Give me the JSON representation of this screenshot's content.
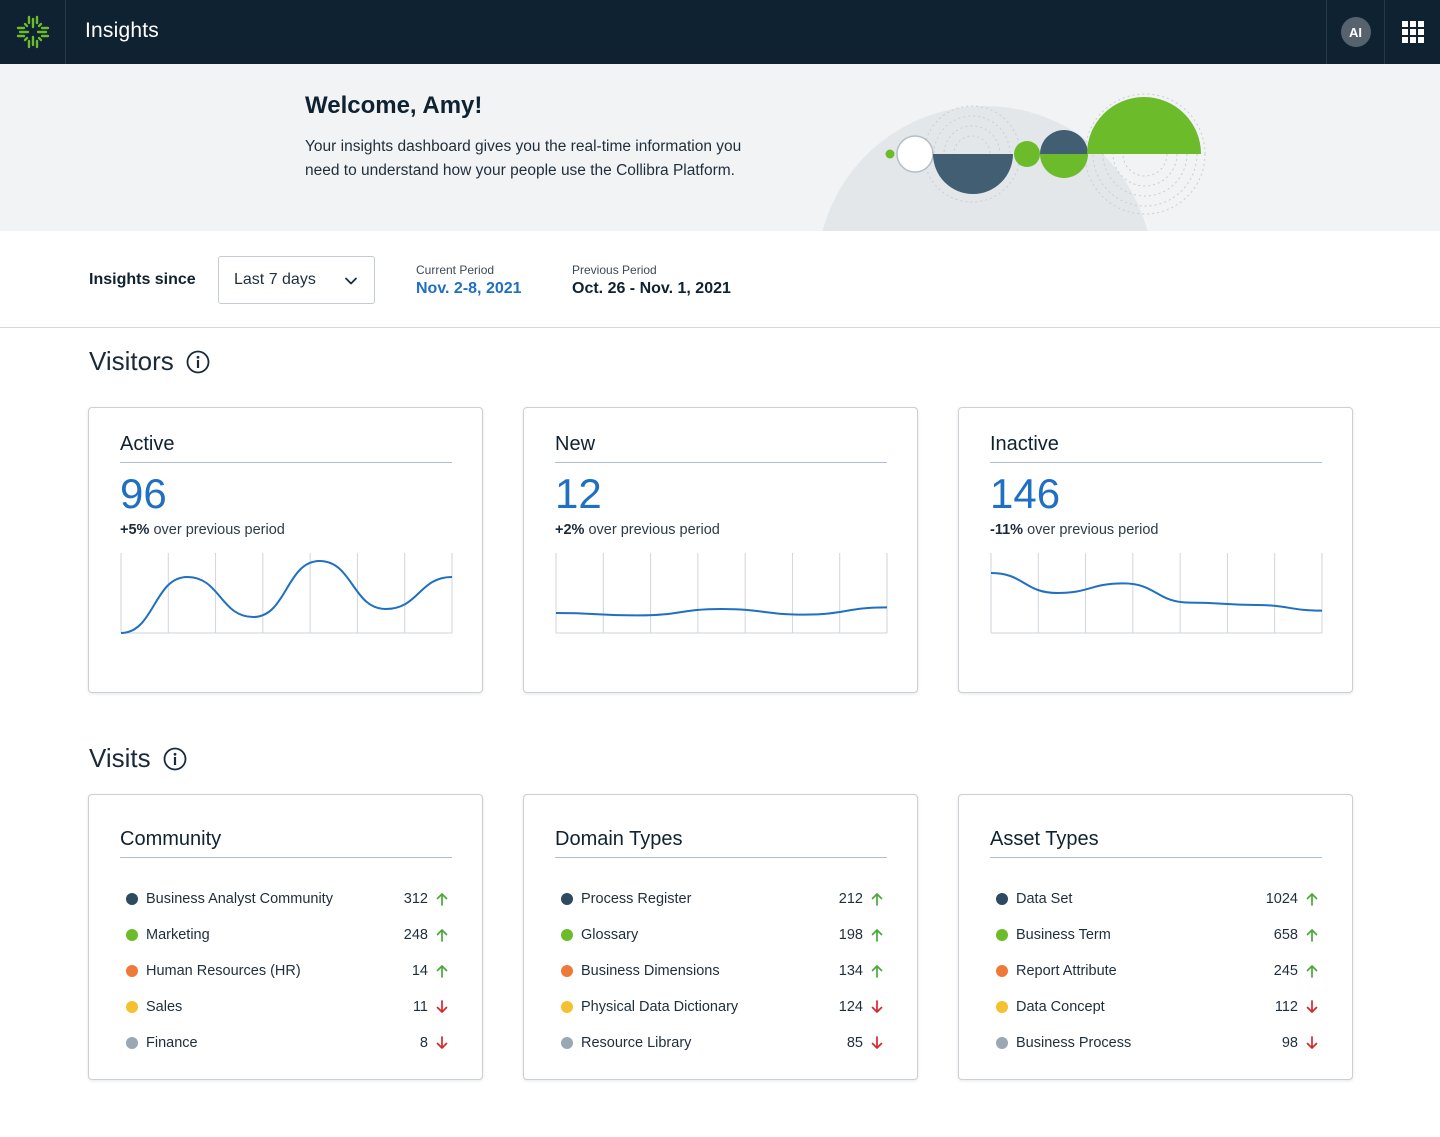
{
  "app": {
    "title": "Insights",
    "user_initials": "AI"
  },
  "banner": {
    "welcome": "Welcome, Amy!",
    "text": "Your insights dashboard gives you the real-time information you need to understand how your people use the Collibra Platform."
  },
  "filters": {
    "since_label": "Insights since",
    "range_selected": "Last 7 days",
    "current_label": "Current Period",
    "current_value": "Nov. 2-8, 2021",
    "previous_label": "Previous Period",
    "previous_value": "Oct. 26 - Nov. 1, 2021"
  },
  "sections": {
    "visitors": "Visitors",
    "visits": "Visits"
  },
  "colors": {
    "accent": "#1f6fc2",
    "navy": "#0f2231",
    "green": "#6cbb2a",
    "up": "#4aa83a",
    "down": "#d9262c"
  },
  "visitors": [
    {
      "title": "Active",
      "value": "96",
      "delta": "+5%",
      "delta_text": " over previous period",
      "trend": [
        0.0,
        0.7,
        0.2,
        0.9,
        0.3,
        0.7
      ]
    },
    {
      "title": "New",
      "value": "12",
      "delta": "+2%",
      "delta_text": " over previous period",
      "trend": [
        0.25,
        0.22,
        0.3,
        0.23,
        0.32
      ]
    },
    {
      "title": "Inactive",
      "value": "146",
      "delta": "-11%",
      "delta_text": " over previous period",
      "trend": [
        0.75,
        0.5,
        0.62,
        0.38,
        0.35,
        0.28
      ]
    }
  ],
  "visits": [
    {
      "title": "Community",
      "items": [
        {
          "label": "Business Analyst Community",
          "value": "312",
          "dir": "up",
          "color": "#2d4a5e"
        },
        {
          "label": "Marketing",
          "value": "248",
          "dir": "up",
          "color": "#6cbb2a"
        },
        {
          "label": "Human Resources (HR)",
          "value": "14",
          "dir": "up",
          "color": "#ee7a3a"
        },
        {
          "label": "Sales",
          "value": "11",
          "dir": "down",
          "color": "#f5c12e"
        },
        {
          "label": "Finance",
          "value": "8",
          "dir": "down",
          "color": "#9aa8b3"
        }
      ]
    },
    {
      "title": "Domain Types",
      "items": [
        {
          "label": "Process Register",
          "value": "212",
          "dir": "up",
          "color": "#2d4a5e"
        },
        {
          "label": "Glossary",
          "value": "198",
          "dir": "up",
          "color": "#6cbb2a"
        },
        {
          "label": "Business Dimensions",
          "value": "134",
          "dir": "up",
          "color": "#ee7a3a"
        },
        {
          "label": "Physical Data Dictionary",
          "value": "124",
          "dir": "down",
          "color": "#f5c12e"
        },
        {
          "label": "Resource Library",
          "value": "85",
          "dir": "down",
          "color": "#9aa8b3"
        }
      ]
    },
    {
      "title": "Asset Types",
      "items": [
        {
          "label": "Data Set",
          "value": "1024",
          "dir": "up",
          "color": "#2d4a5e"
        },
        {
          "label": "Business Term",
          "value": "658",
          "dir": "up",
          "color": "#6cbb2a"
        },
        {
          "label": "Report Attribute",
          "value": "245",
          "dir": "up",
          "color": "#ee7a3a"
        },
        {
          "label": "Data Concept",
          "value": "112",
          "dir": "down",
          "color": "#f5c12e"
        },
        {
          "label": "Business Process",
          "value": "98",
          "dir": "down",
          "color": "#9aa8b3"
        }
      ]
    }
  ]
}
